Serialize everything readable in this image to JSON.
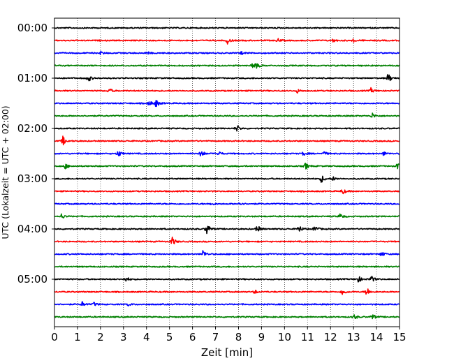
{
  "chart_data": {
    "type": "line",
    "title": "",
    "xlabel": "Zeit  [min]",
    "ylabel": "UTC (Lokalzeit = UTC + 02:00)",
    "xlim": [
      0,
      15
    ],
    "x_ticks": [
      0,
      1,
      2,
      3,
      4,
      5,
      6,
      7,
      8,
      9,
      10,
      11,
      12,
      13,
      14,
      15
    ],
    "x_tick_labels": [
      "0",
      "1",
      "2",
      "3",
      "4",
      "5",
      "6",
      "7",
      "8",
      "9",
      "10",
      "11",
      "12",
      "13",
      "14",
      "15"
    ],
    "y_tick_labels": [
      "00:00",
      "01:00",
      "02:00",
      "03:00",
      "04:00",
      "05:00"
    ],
    "trace_interval_min": 15,
    "trace_colors": [
      "#000000",
      "#ff0000",
      "#0000ff",
      "#008000"
    ],
    "grid": "vertical dotted lines at each minute",
    "traces": [
      {
        "start": "00:00",
        "color": "#000000",
        "events": []
      },
      {
        "start": "00:15",
        "color": "#ff0000",
        "events": [
          {
            "t": 7.5,
            "amp": 0.7
          },
          {
            "t": 9.7,
            "amp": 0.4
          },
          {
            "t": 12.1,
            "amp": 0.3
          },
          {
            "t": 13.0,
            "amp": 0.3
          }
        ]
      },
      {
        "start": "00:30",
        "color": "#0000ff",
        "events": [
          {
            "t": 2.0,
            "amp": 0.3
          },
          {
            "t": 4.0,
            "amp": 0.3
          },
          {
            "t": 8.1,
            "amp": 0.3
          }
        ]
      },
      {
        "start": "00:45",
        "color": "#008000",
        "events": [
          {
            "t": 8.6,
            "amp": 0.9
          },
          {
            "t": 8.8,
            "amp": 0.4
          }
        ]
      },
      {
        "start": "01:00",
        "color": "#000000",
        "events": [
          {
            "t": 1.45,
            "amp": 0.8
          },
          {
            "t": 14.5,
            "amp": 1.0
          }
        ]
      },
      {
        "start": "01:15",
        "color": "#ff0000",
        "events": [
          {
            "t": 2.35,
            "amp": 0.6
          },
          {
            "t": 10.55,
            "amp": 0.4
          },
          {
            "t": 13.75,
            "amp": 0.5
          }
        ]
      },
      {
        "start": "01:30",
        "color": "#0000ff",
        "events": [
          {
            "t": 4.1,
            "amp": 0.6
          },
          {
            "t": 4.4,
            "amp": 0.8
          }
        ]
      },
      {
        "start": "01:45",
        "color": "#008000",
        "events": [
          {
            "t": 13.8,
            "amp": 0.6
          }
        ]
      },
      {
        "start": "02:00",
        "color": "#000000",
        "events": [
          {
            "t": 7.9,
            "amp": 0.8
          }
        ]
      },
      {
        "start": "02:15",
        "color": "#ff0000",
        "events": [
          {
            "t": 0.35,
            "amp": 1.0
          }
        ]
      },
      {
        "start": "02:30",
        "color": "#0000ff",
        "events": [
          {
            "t": 2.75,
            "amp": 0.8
          },
          {
            "t": 6.35,
            "amp": 0.9
          },
          {
            "t": 7.1,
            "amp": 0.6
          },
          {
            "t": 10.8,
            "amp": 0.4
          },
          {
            "t": 11.7,
            "amp": 0.4
          },
          {
            "t": 14.3,
            "amp": 0.4
          }
        ]
      },
      {
        "start": "02:45",
        "color": "#008000",
        "events": [
          {
            "t": 0.45,
            "amp": 0.6
          },
          {
            "t": 10.9,
            "amp": 0.7
          },
          {
            "t": 14.9,
            "amp": 0.6
          }
        ]
      },
      {
        "start": "03:00",
        "color": "#000000",
        "events": [
          {
            "t": 11.6,
            "amp": 0.8
          },
          {
            "t": 12.1,
            "amp": 0.4
          }
        ]
      },
      {
        "start": "03:15",
        "color": "#ff0000",
        "events": [
          {
            "t": 12.5,
            "amp": 0.7
          }
        ]
      },
      {
        "start": "03:30",
        "color": "#0000ff",
        "events": [
          {
            "t": 6.8,
            "amp": 0.3
          },
          {
            "t": 8.0,
            "amp": 0.4
          }
        ]
      },
      {
        "start": "03:45",
        "color": "#008000",
        "events": [
          {
            "t": 0.3,
            "amp": 0.5
          },
          {
            "t": 12.4,
            "amp": 0.6
          }
        ]
      },
      {
        "start": "04:00",
        "color": "#000000",
        "events": [
          {
            "t": 6.6,
            "amp": 1.4
          },
          {
            "t": 8.8,
            "amp": 0.8
          },
          {
            "t": 10.6,
            "amp": 0.9
          },
          {
            "t": 11.3,
            "amp": 0.8
          }
        ]
      },
      {
        "start": "04:15",
        "color": "#ff0000",
        "events": [
          {
            "t": 5.1,
            "amp": 1.0
          }
        ]
      },
      {
        "start": "04:30",
        "color": "#0000ff",
        "events": [
          {
            "t": 6.45,
            "amp": 0.8
          },
          {
            "t": 14.2,
            "amp": 0.6
          }
        ]
      },
      {
        "start": "04:45",
        "color": "#008000",
        "events": []
      },
      {
        "start": "05:00",
        "color": "#000000",
        "events": [
          {
            "t": 3.1,
            "amp": 0.5
          },
          {
            "t": 13.2,
            "amp": 0.7
          },
          {
            "t": 13.75,
            "amp": 0.8
          }
        ]
      },
      {
        "start": "05:15",
        "color": "#ff0000",
        "events": [
          {
            "t": 8.7,
            "amp": 0.4
          },
          {
            "t": 12.5,
            "amp": 0.8
          },
          {
            "t": 13.55,
            "amp": 1.1
          }
        ]
      },
      {
        "start": "05:30",
        "color": "#0000ff",
        "events": [
          {
            "t": 1.2,
            "amp": 0.5
          },
          {
            "t": 1.7,
            "amp": 0.4
          },
          {
            "t": 3.2,
            "amp": 0.3
          }
        ]
      },
      {
        "start": "05:45",
        "color": "#008000",
        "events": [
          {
            "t": 13.0,
            "amp": 0.6
          },
          {
            "t": 13.8,
            "amp": 0.7
          }
        ]
      }
    ]
  }
}
